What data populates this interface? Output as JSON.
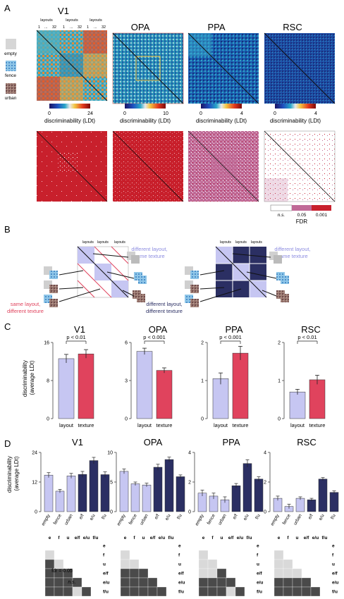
{
  "panels": {
    "A": "A",
    "B": "B",
    "C": "C",
    "D": "D"
  },
  "rois": [
    "V1",
    "OPA",
    "PPA",
    "RSC"
  ],
  "panelA": {
    "layouts_label": "layouts",
    "tick_1": "1",
    "tick_dots": "...",
    "tick_32": "32",
    "textures": [
      "empty",
      "fence",
      "urban"
    ],
    "colorbar_label": "discriminability (LDt)",
    "colorbar_min": "0",
    "colorbar_max": [
      "24",
      "10",
      "4",
      "4"
    ],
    "fdr_labels": [
      "n.s.",
      "0.05",
      "0.001"
    ],
    "fdr_title": "FDR"
  },
  "panelB": {
    "left_top_label": [
      "different layout,",
      "same texture"
    ],
    "left_bottom_label": [
      "same layout,",
      "different texture"
    ],
    "right_bottom_label": [
      "different layout,",
      "different texture"
    ],
    "layouts_label": "layouts"
  },
  "panelC": {
    "ylabel": [
      "discriminability",
      "(average LDt)"
    ],
    "pvalues": [
      "p < 0.01",
      "p < 0.001",
      "p < 0.001",
      "p < 0.01"
    ],
    "categories": [
      "layout",
      "texture"
    ],
    "colors": {
      "layout": "#c6c6f2",
      "texture": "#e0435d",
      "dark": "#2b2f63"
    }
  },
  "panelD": {
    "ylabel": [
      "discriminability",
      "(average LDt)"
    ],
    "categories": [
      "empty",
      "fence",
      "urban",
      "e/f",
      "e/u",
      "f/u"
    ],
    "matrix_letters": [
      "e",
      "f",
      "u",
      "e/f",
      "e/u",
      "f/u"
    ],
    "fdr_note": "fdr = 0.05",
    "ns_note": "n.s."
  },
  "chart_data": [
    {
      "type": "bar",
      "title": "V1",
      "categories": [
        "layout",
        "texture"
      ],
      "values": [
        12.6,
        13.6
      ],
      "ylim": [
        0,
        16
      ],
      "yticks": [
        "0",
        "8",
        "16"
      ],
      "errors": [
        0.9,
        0.9
      ]
    },
    {
      "type": "bar",
      "title": "OPA",
      "categories": [
        "layout",
        "texture"
      ],
      "values": [
        5.3,
        3.8
      ],
      "ylim": [
        0,
        6
      ],
      "yticks": [
        "0",
        "3",
        "6"
      ],
      "errors": [
        0.25,
        0.2
      ]
    },
    {
      "type": "bar",
      "title": "PPA",
      "categories": [
        "layout",
        "texture"
      ],
      "values": [
        1.05,
        1.72
      ],
      "ylim": [
        0,
        2
      ],
      "yticks": [
        "0",
        "1",
        "2"
      ],
      "errors": [
        0.15,
        0.18
      ]
    },
    {
      "type": "bar",
      "title": "RSC",
      "categories": [
        "layout",
        "texture"
      ],
      "values": [
        0.7,
        1.02
      ],
      "ylim": [
        0,
        2
      ],
      "yticks": [
        "0",
        "1",
        "2"
      ],
      "errors": [
        0.07,
        0.12
      ]
    },
    {
      "type": "bar",
      "title": "V1",
      "categories": [
        "empty",
        "fence",
        "urban",
        "e/f",
        "e/u",
        "f/u"
      ],
      "values": [
        14.8,
        8.3,
        14.5,
        15.1,
        20.7,
        15.0
      ],
      "ylim": [
        0,
        24
      ],
      "yticks": [
        "0",
        "12",
        "24"
      ],
      "errors": [
        1.0,
        0.7,
        1.0,
        1.2,
        1.3,
        1.1
      ]
    },
    {
      "type": "bar",
      "title": "OPA",
      "categories": [
        "empty",
        "fence",
        "urban",
        "e/f",
        "e/u",
        "f/u"
      ],
      "values": [
        6.8,
        4.7,
        4.5,
        7.5,
        8.8,
        5.9
      ],
      "ylim": [
        0,
        10
      ],
      "yticks": [
        "0",
        "5",
        "10"
      ],
      "errors": [
        0.4,
        0.3,
        0.3,
        0.5,
        0.4,
        0.3
      ]
    },
    {
      "type": "bar",
      "title": "PPA",
      "categories": [
        "empty",
        "fence",
        "urban",
        "e/f",
        "e/u",
        "f/u"
      ],
      "values": [
        1.25,
        1.05,
        0.8,
        1.75,
        3.25,
        2.2
      ],
      "ylim": [
        0,
        4
      ],
      "yticks": [
        "0",
        "2",
        "4"
      ],
      "errors": [
        0.2,
        0.2,
        0.2,
        0.15,
        0.25,
        0.15
      ]
    },
    {
      "type": "bar",
      "title": "RSC",
      "categories": [
        "empty",
        "fence",
        "urban",
        "e/f",
        "e/u",
        "f/u"
      ],
      "values": [
        0.9,
        0.35,
        0.9,
        0.8,
        2.2,
        1.3
      ],
      "ylim": [
        0,
        4
      ],
      "yticks": [
        "0",
        "2",
        "4"
      ],
      "errors": [
        0.15,
        0.15,
        0.1,
        0.1,
        0.1,
        0.1
      ]
    }
  ]
}
